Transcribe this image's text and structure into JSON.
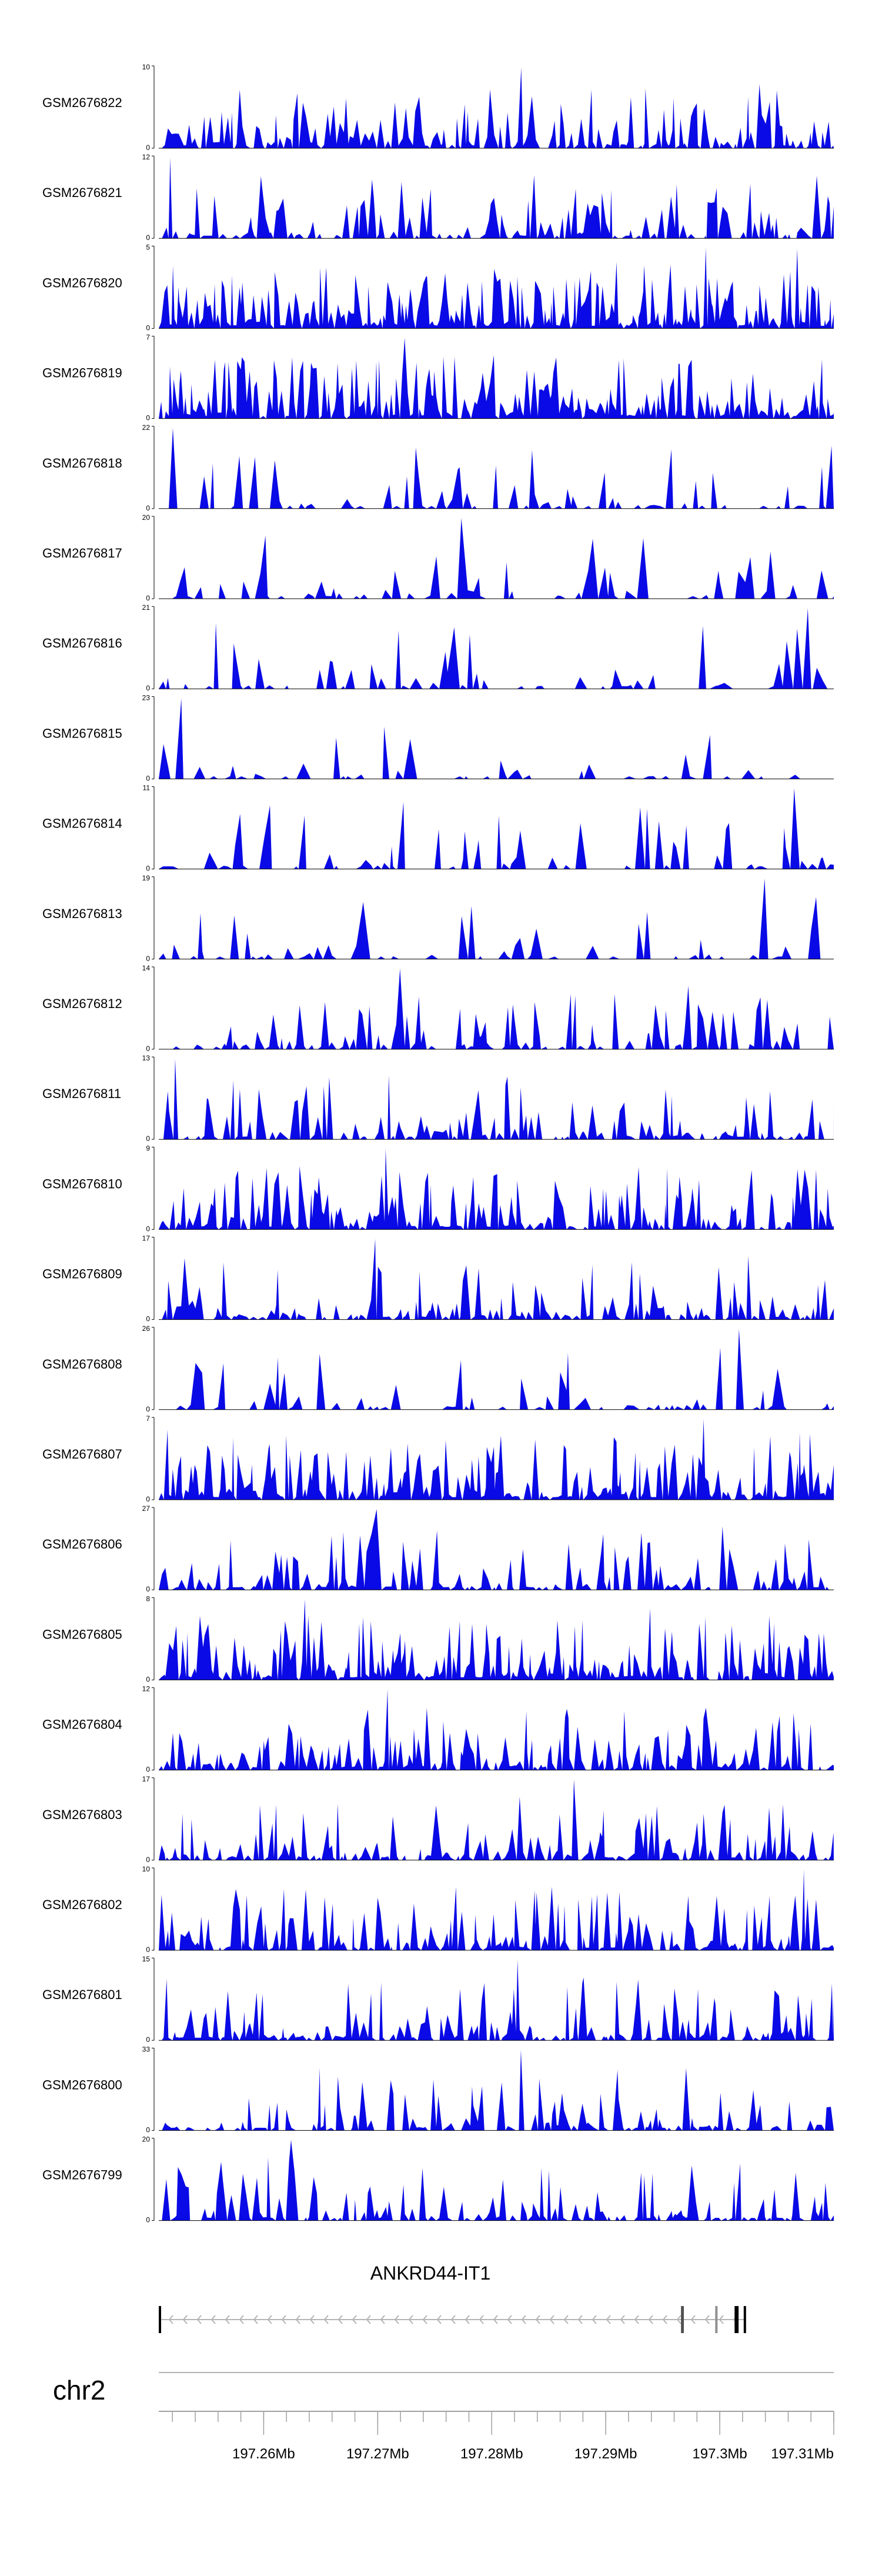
{
  "chart_data": {
    "type": "area",
    "title": "",
    "fill_color": "#0a0ae6",
    "axis_color": "#000000",
    "baseline_color": "#000000",
    "x_range": [
      197.2508,
      197.31
    ],
    "x_unit": "Mb",
    "tracks": [
      {
        "name": "GSM2676822",
        "ymax": 10,
        "ymin": 0,
        "ymax_label": "10",
        "ymin_label": "0",
        "seed": 822,
        "density": 0.72,
        "peakiness": 0.55
      },
      {
        "name": "GSM2676821",
        "ymax": 12,
        "ymin": 0,
        "ymax_label": "12",
        "ymin_label": "0",
        "seed": 821,
        "density": 0.62,
        "peakiness": 0.6
      },
      {
        "name": "GSM2676820",
        "ymax": 5,
        "ymin": 0,
        "ymax_label": "5",
        "ymin_label": "0",
        "seed": 820,
        "density": 0.92,
        "peakiness": 0.4
      },
      {
        "name": "GSM2676819",
        "ymax": 7,
        "ymin": 0,
        "ymax_label": "7",
        "ymin_label": "0",
        "seed": 819,
        "density": 0.88,
        "peakiness": 0.45
      },
      {
        "name": "GSM2676818",
        "ymax": 22,
        "ymin": 0,
        "ymax_label": "22",
        "ymin_label": "0",
        "seed": 818,
        "density": 0.4,
        "peakiness": 0.75
      },
      {
        "name": "GSM2676817",
        "ymax": 20,
        "ymin": 0,
        "ymax_label": "20",
        "ymin_label": "0",
        "seed": 817,
        "density": 0.35,
        "peakiness": 0.8
      },
      {
        "name": "GSM2676816",
        "ymax": 21,
        "ymin": 0,
        "ymax_label": "21",
        "ymin_label": "0",
        "seed": 816,
        "density": 0.33,
        "peakiness": 0.8
      },
      {
        "name": "GSM2676815",
        "ymax": 23,
        "ymin": 0,
        "ymax_label": "23",
        "ymin_label": "0",
        "seed": 815,
        "density": 0.3,
        "peakiness": 0.8
      },
      {
        "name": "GSM2676814",
        "ymax": 11,
        "ymin": 0,
        "ymax_label": "11",
        "ymin_label": "0",
        "seed": 814,
        "density": 0.38,
        "peakiness": 0.7
      },
      {
        "name": "GSM2676813",
        "ymax": 19,
        "ymin": 0,
        "ymax_label": "19",
        "ymin_label": "0",
        "seed": 813,
        "density": 0.32,
        "peakiness": 0.8
      },
      {
        "name": "GSM2676812",
        "ymax": 14,
        "ymin": 0,
        "ymax_label": "14",
        "ymin_label": "0",
        "seed": 812,
        "density": 0.55,
        "peakiness": 0.7
      },
      {
        "name": "GSM2676811",
        "ymax": 13,
        "ymin": 0,
        "ymax_label": "13",
        "ymin_label": "0",
        "seed": 811,
        "density": 0.62,
        "peakiness": 0.6
      },
      {
        "name": "GSM2676810",
        "ymax": 9,
        "ymin": 0,
        "ymax_label": "9",
        "ymin_label": "0",
        "seed": 810,
        "density": 0.78,
        "peakiness": 0.55
      },
      {
        "name": "GSM2676809",
        "ymax": 17,
        "ymin": 0,
        "ymax_label": "17",
        "ymin_label": "0",
        "seed": 809,
        "density": 0.62,
        "peakiness": 0.65
      },
      {
        "name": "GSM2676808",
        "ymax": 26,
        "ymin": 0,
        "ymax_label": "26",
        "ymin_label": "0",
        "seed": 808,
        "density": 0.35,
        "peakiness": 0.8
      },
      {
        "name": "GSM2676807",
        "ymax": 7,
        "ymin": 0,
        "ymax_label": "7",
        "ymin_label": "0",
        "seed": 807,
        "density": 0.85,
        "peakiness": 0.45
      },
      {
        "name": "GSM2676806",
        "ymax": 27,
        "ymin": 0,
        "ymax_label": "27",
        "ymin_label": "0",
        "seed": 806,
        "density": 0.58,
        "peakiness": 0.8
      },
      {
        "name": "GSM2676805",
        "ymax": 8,
        "ymin": 0,
        "ymax_label": "8",
        "ymin_label": "0",
        "seed": 805,
        "density": 0.9,
        "peakiness": 0.45
      },
      {
        "name": "GSM2676804",
        "ymax": 12,
        "ymin": 0,
        "ymax_label": "12",
        "ymin_label": "0",
        "seed": 804,
        "density": 0.75,
        "peakiness": 0.6
      },
      {
        "name": "GSM2676803",
        "ymax": 17,
        "ymin": 0,
        "ymax_label": "17",
        "ymin_label": "0",
        "seed": 803,
        "density": 0.7,
        "peakiness": 0.65
      },
      {
        "name": "GSM2676802",
        "ymax": 10,
        "ymin": 0,
        "ymax_label": "10",
        "ymin_label": "0",
        "seed": 802,
        "density": 0.75,
        "peakiness": 0.6
      },
      {
        "name": "GSM2676801",
        "ymax": 15,
        "ymin": 0,
        "ymax_label": "15",
        "ymin_label": "0",
        "seed": 801,
        "density": 0.7,
        "peakiness": 0.75
      },
      {
        "name": "GSM2676800",
        "ymax": 33,
        "ymin": 0,
        "ymax_label": "33",
        "ymin_label": "0",
        "seed": 800,
        "density": 0.6,
        "peakiness": 0.8
      },
      {
        "name": "GSM2676799",
        "ymax": 20,
        "ymin": 0,
        "ymax_label": "20",
        "ymin_label": "0",
        "seed": 799,
        "density": 0.62,
        "peakiness": 0.75
      }
    ],
    "gene": {
      "name": "ANKRD44-IT1",
      "strand": "-",
      "start": 197.2508,
      "end": 197.3023,
      "exons": [
        [
          197.2508,
          197.25095
        ],
        [
          197.2966,
          197.29685
        ],
        [
          197.2996,
          197.29975
        ],
        [
          197.3013,
          197.30165
        ],
        [
          197.3021,
          197.3023
        ]
      ],
      "line_color": "#b4b4b4",
      "exon_colors": [
        "#000000",
        "#505050",
        "#909090",
        "#000000",
        "#000000"
      ]
    },
    "axis": {
      "chromosome": "chr2",
      "ticks": [
        197.26,
        197.27,
        197.28,
        197.29,
        197.3,
        197.31
      ],
      "tick_labels": [
        "197.26Mb",
        "197.27Mb",
        "197.28Mb",
        "197.29Mb",
        "197.3Mb",
        "197.31Mb"
      ],
      "minor_tick_step": 0.002
    }
  }
}
